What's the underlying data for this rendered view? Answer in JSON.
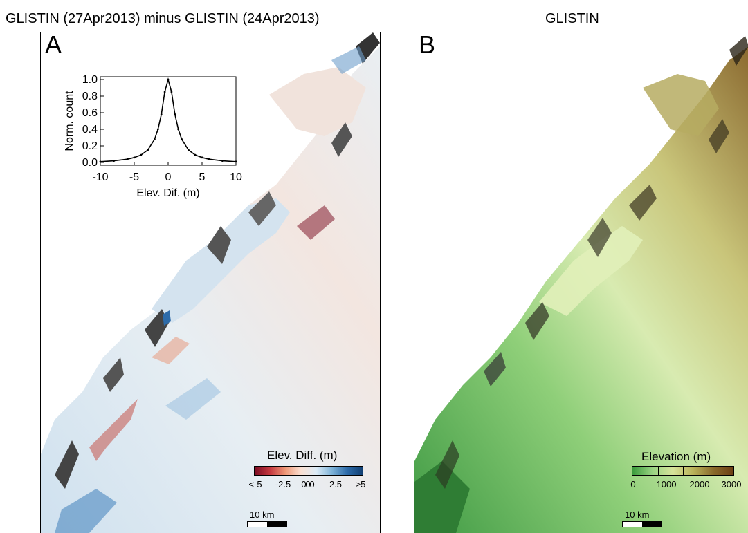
{
  "panel_a": {
    "title": "GLISTIN (27Apr2013) minus GLISTIN (24Apr2013)",
    "label": "A",
    "inset": {
      "ylabel": "Norm. count",
      "xlabel": "Elev. Dif. (m)",
      "yticks": [
        "0.0",
        "0.2",
        "0.4",
        "0.6",
        "0.8",
        "1.0"
      ],
      "xticks": [
        "-10",
        "-5",
        "0",
        "5",
        "10"
      ]
    },
    "legend_title": "Elev. Diff. (m)",
    "colorbar_ticks": [
      "<-5",
      "-2.5",
      "0",
      "0",
      "0",
      "2.5",
      ">5"
    ],
    "colorbar_colors": [
      "#7b0c23",
      "#c5393f",
      "#ee9877",
      "#fae0d2",
      "#dcebf6",
      "#7fb4d8",
      "#2d6ba9",
      "#113f73"
    ],
    "scale_label": "10 km"
  },
  "panel_b": {
    "title": "GLISTIN",
    "label": "B",
    "legend_title": "Elevation (m)",
    "colorbar_ticks": [
      "0",
      "1000",
      "2000",
      "3000"
    ],
    "colorbar_colors": [
      "#3a9a3c",
      "#9ad483",
      "#d6e39a",
      "#b9b35a",
      "#8a6a2c",
      "#6b3d14"
    ],
    "scale_label": "10 km"
  },
  "chart_data": {
    "type": "line",
    "title": "",
    "xlabel": "Elev. Dif. (m)",
    "ylabel": "Norm. count",
    "xlim": [
      -10,
      10
    ],
    "ylim": [
      0,
      1
    ],
    "x": [
      -10,
      -8,
      -6,
      -5,
      -4,
      -3,
      -2,
      -1.5,
      -1,
      -0.5,
      0,
      0.5,
      1,
      1.5,
      2,
      3,
      4,
      5,
      6,
      8,
      10
    ],
    "series": [
      {
        "values": [
          0.01,
          0.02,
          0.04,
          0.06,
          0.09,
          0.15,
          0.28,
          0.4,
          0.58,
          0.85,
          1.0,
          0.85,
          0.58,
          0.4,
          0.28,
          0.15,
          0.09,
          0.06,
          0.04,
          0.02,
          0.01
        ]
      }
    ]
  }
}
